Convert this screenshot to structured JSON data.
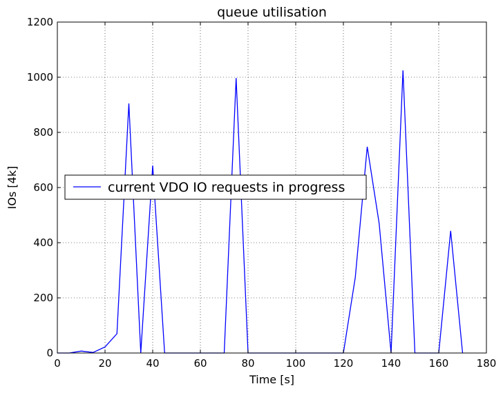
{
  "chart_data": {
    "type": "line",
    "title": "queue utilisation",
    "xlabel": "Time [s]",
    "ylabel": "IOs [4k]",
    "xlim": [
      0,
      180
    ],
    "ylim": [
      0,
      1200
    ],
    "xticks": [
      0,
      20,
      40,
      60,
      80,
      100,
      120,
      140,
      160,
      180
    ],
    "yticks": [
      0,
      200,
      400,
      600,
      800,
      1000,
      1200
    ],
    "grid": true,
    "legend_position": "center-left",
    "series": [
      {
        "name": "current VDO IO requests in progress",
        "color": "#0000ff",
        "x": [
          0,
          5,
          10,
          15,
          20,
          25,
          30,
          35,
          40,
          45,
          50,
          55,
          60,
          65,
          70,
          75,
          80,
          85,
          90,
          95,
          100,
          105,
          110,
          115,
          120,
          125,
          130,
          135,
          140,
          145,
          150,
          155,
          160,
          165,
          170
        ],
        "y": [
          0,
          0,
          7,
          2,
          22,
          70,
          905,
          0,
          680,
          0,
          0,
          0,
          0,
          0,
          0,
          997,
          0,
          0,
          0,
          0,
          0,
          0,
          0,
          0,
          0,
          275,
          748,
          470,
          0,
          1025,
          0,
          0,
          0,
          443,
          0
        ]
      }
    ]
  }
}
